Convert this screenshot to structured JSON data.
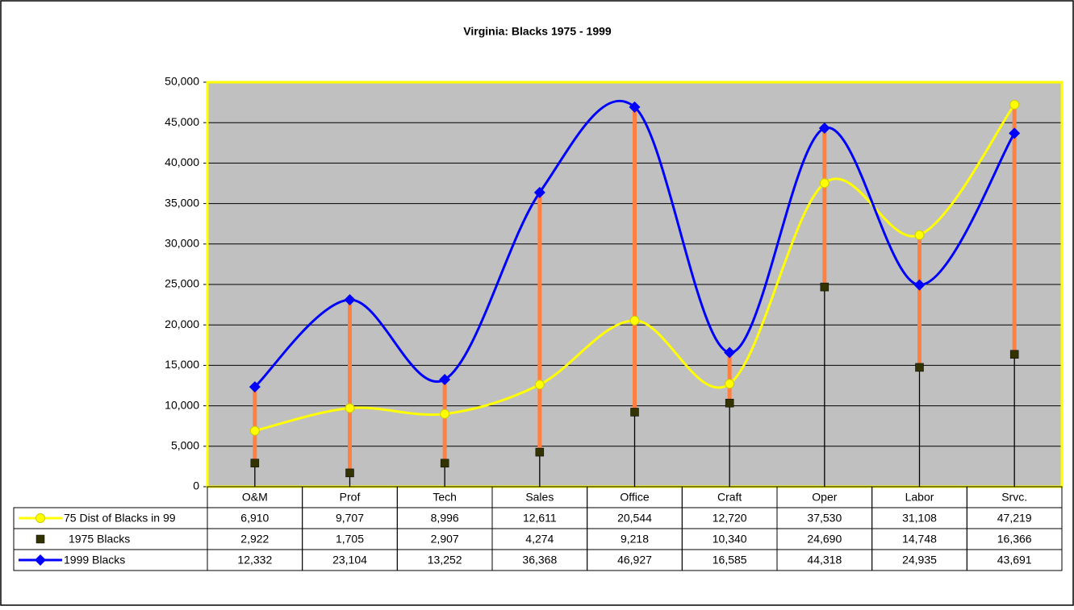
{
  "chart_data": {
    "type": "line",
    "title": "Virginia: Blacks 1975 - 1999",
    "categories": [
      "O&M",
      "Prof",
      "Tech",
      "Sales",
      "Office",
      "Craft",
      "Oper",
      "Labor",
      "Srvc."
    ],
    "series": [
      {
        "name": "75 Dist of Blacks in 99",
        "color": "#ffff00",
        "marker": "circle",
        "line": true,
        "values": [
          6910,
          9707,
          8996,
          12611,
          20544,
          12720,
          37530,
          31108,
          47219
        ],
        "value_labels": [
          "6,910",
          "9,707",
          "8,996",
          "12,611",
          "20,544",
          "12,720",
          "37,530",
          "31,108",
          "47,219"
        ]
      },
      {
        "name": "1975 Blacks",
        "color": "#333300",
        "marker": "square",
        "line": false,
        "values": [
          2922,
          1705,
          2907,
          4274,
          9218,
          10340,
          24690,
          14748,
          16366
        ],
        "value_labels": [
          "2,922",
          "1,705",
          "2,907",
          "4,274",
          "9,218",
          "10,340",
          "24,690",
          "14,748",
          "16,366"
        ]
      },
      {
        "name": "1999 Blacks",
        "color": "#0000ff",
        "marker": "diamond",
        "line": true,
        "values": [
          12332,
          23104,
          13252,
          36368,
          46927,
          16585,
          44318,
          24935,
          43691
        ],
        "value_labels": [
          "12,332",
          "23,104",
          "13,252",
          "36,368",
          "46,927",
          "16,585",
          "44,318",
          "24,935",
          "43,691"
        ]
      }
    ],
    "ylim": [
      0,
      50000
    ],
    "yticks": [
      0,
      {
        "value": 5000,
        "label": "5,000"
      },
      {
        "value": 10000,
        "label": "10,000"
      },
      {
        "value": 15000,
        "label": "15,000"
      },
      {
        "value": 20000,
        "label": "20,000"
      },
      {
        "value": 25000,
        "label": "25,000"
      },
      {
        "value": 30000,
        "label": "30,000"
      },
      {
        "value": 35000,
        "label": "35,000"
      },
      {
        "value": 40000,
        "label": "40,000"
      },
      {
        "value": 45000,
        "label": "45,000"
      },
      {
        "value": 50000,
        "label": "50,000"
      }
    ],
    "grid": true,
    "smooth": true,
    "plot_background": "#c0c0c0",
    "plot_border": "#ffff00",
    "high_low_color": "#ff8040",
    "drop_line_color": "#000000",
    "data_table": true
  }
}
